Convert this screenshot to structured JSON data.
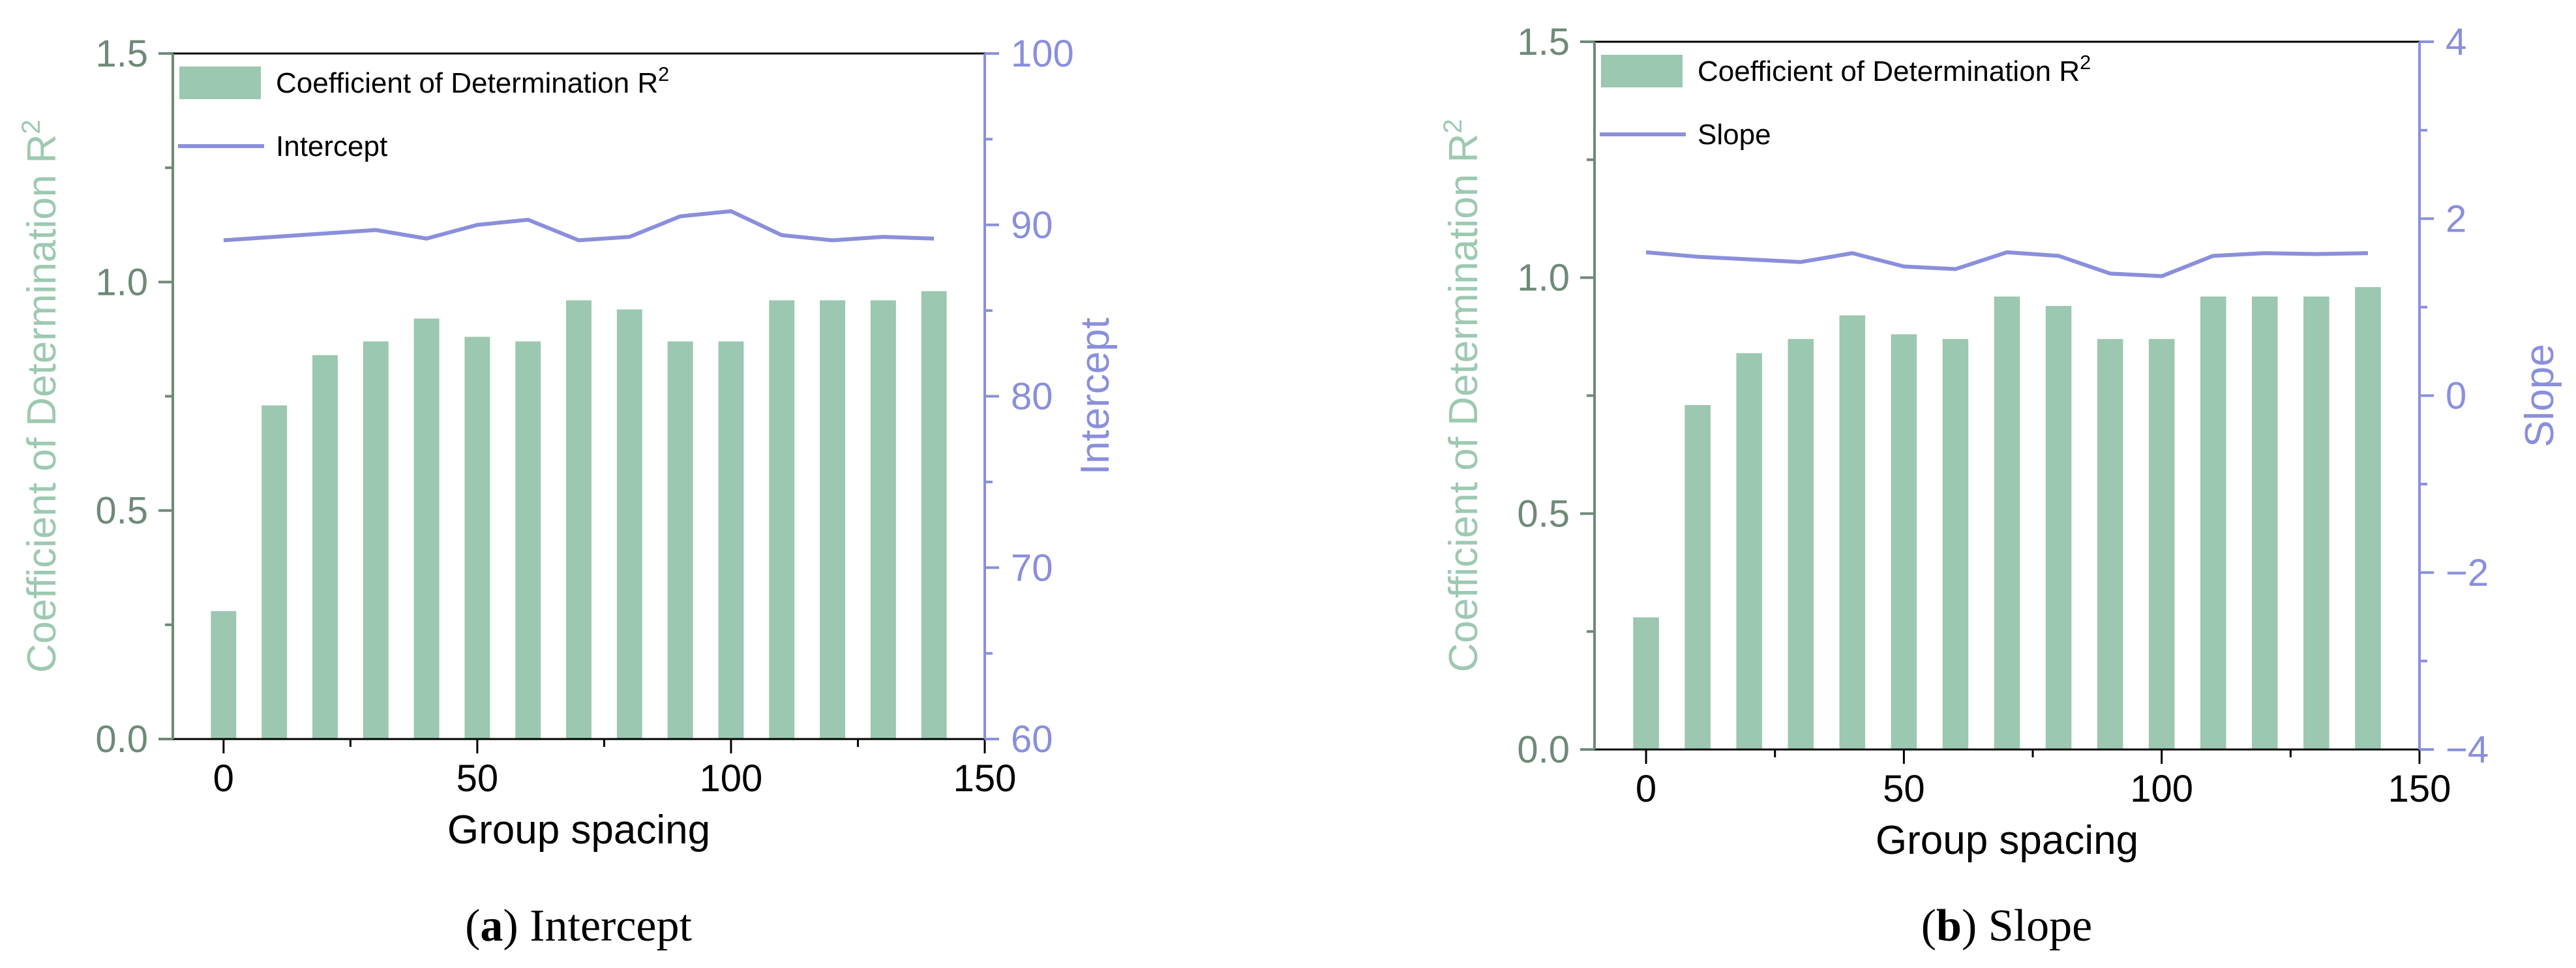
{
  "colors": {
    "bar": "#9CC7B0",
    "line": "#8A8FDC",
    "left_axis": "#6E8A78",
    "left_label": "#9DC9B1",
    "right_axis": "#8A8FDC",
    "frame": "#000000"
  },
  "chart_data": [
    {
      "id": "a",
      "type": "bar",
      "xlabel": "Group spacing",
      "ylabel": "Coefficient of Determination R",
      "ylabel_sup": "2",
      "y2label": "Intercept",
      "xlim": [
        -10,
        150
      ],
      "ylim": [
        0,
        1.5
      ],
      "y2lim": [
        60,
        100
      ],
      "x_ticks": [
        0,
        50,
        100,
        150
      ],
      "y_ticks": [
        "0.0",
        "0.5",
        "1.0",
        "1.5"
      ],
      "y2_ticks": [
        "60",
        "70",
        "80",
        "90",
        "100"
      ],
      "x": [
        0,
        10,
        20,
        30,
        40,
        50,
        60,
        70,
        80,
        90,
        100,
        110,
        120,
        130,
        140
      ],
      "series": [
        {
          "name": "Coefficient of Determination R",
          "name_sup": "2",
          "kind": "bar",
          "axis": "left",
          "values": [
            0.28,
            0.73,
            0.84,
            0.87,
            0.92,
            0.88,
            0.87,
            0.96,
            0.94,
            0.87,
            0.87,
            0.96,
            0.96,
            0.96,
            0.98
          ]
        },
        {
          "name": "Intercept",
          "kind": "line",
          "axis": "right",
          "values": [
            89.1,
            89.3,
            89.5,
            89.7,
            89.2,
            90.0,
            90.3,
            89.1,
            89.3,
            90.5,
            90.8,
            89.4,
            89.1,
            89.3,
            89.2
          ]
        }
      ],
      "legend_position": "top-left",
      "caption_letter": "a",
      "caption_text": ") Intercept",
      "caption_open": "("
    },
    {
      "id": "b",
      "type": "bar",
      "xlabel": "Group spacing",
      "ylabel": "Coefficient of Determination R",
      "ylabel_sup": "2",
      "y2label": "Slope",
      "xlim": [
        -10,
        150
      ],
      "ylim": [
        0,
        1.5
      ],
      "y2lim": [
        -4,
        4
      ],
      "x_ticks": [
        0,
        50,
        100,
        150
      ],
      "y_ticks": [
        "0.0",
        "0.5",
        "1.0",
        "1.5"
      ],
      "y2_ticks": [
        "−4",
        "−2",
        "0",
        "2",
        "4"
      ],
      "x": [
        0,
        10,
        20,
        30,
        40,
        50,
        60,
        70,
        80,
        90,
        100,
        110,
        120,
        130,
        140
      ],
      "series": [
        {
          "name": "Coefficient of Determination R",
          "name_sup": "2",
          "kind": "bar",
          "axis": "left",
          "values": [
            0.28,
            0.73,
            0.84,
            0.87,
            0.92,
            0.88,
            0.87,
            0.96,
            0.94,
            0.87,
            0.87,
            0.96,
            0.96,
            0.96,
            0.98
          ]
        },
        {
          "name": "Slope",
          "kind": "line",
          "axis": "right",
          "values": [
            1.62,
            1.57,
            1.54,
            1.51,
            1.61,
            1.46,
            1.43,
            1.62,
            1.58,
            1.38,
            1.35,
            1.58,
            1.61,
            1.6,
            1.61
          ]
        }
      ],
      "legend_position": "top-left",
      "caption_letter": "b",
      "caption_text": ") Slope",
      "caption_open": "("
    }
  ]
}
